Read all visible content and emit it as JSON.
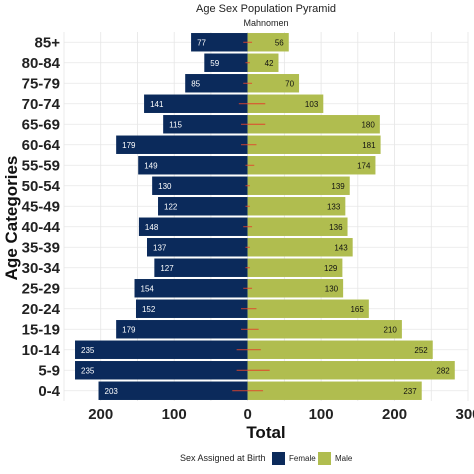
{
  "chart_data": {
    "type": "bar",
    "orientation": "horizontal",
    "title": "Age Sex Population Pyramid",
    "subtitle": "Mahnomen",
    "xlabel": "Total",
    "ylabel": "Age Categories",
    "xlim": [
      -250,
      300
    ],
    "xticks": [
      -200,
      -100,
      0,
      100,
      200,
      300
    ],
    "xtick_labels": [
      "200",
      "100",
      "0",
      "100",
      "200",
      "300"
    ],
    "grid": true,
    "legend": {
      "title": "Sex Assigned at Birth",
      "position": "bottom"
    },
    "categories": [
      "0-4",
      "5-9",
      "10-14",
      "15-19",
      "20-24",
      "25-29",
      "30-34",
      "35-39",
      "40-44",
      "45-49",
      "50-54",
      "55-59",
      "60-64",
      "65-69",
      "70-74",
      "75-79",
      "80-84",
      "85+"
    ],
    "series": [
      {
        "name": "Female",
        "color": "#0b2a5b",
        "values": [
          203,
          235,
          235,
          179,
          152,
          154,
          127,
          137,
          148,
          122,
          130,
          149,
          179,
          115,
          141,
          85,
          59,
          77
        ]
      },
      {
        "name": "Male",
        "color": "#b0bd4f",
        "values": [
          237,
          282,
          252,
          210,
          165,
          130,
          129,
          143,
          136,
          133,
          139,
          174,
          181,
          180,
          103,
          70,
          42,
          56
        ]
      }
    ],
    "error_bar_color": "#e0452b",
    "error_bars": [
      [
        -7,
        7
      ],
      [
        -5,
        10
      ],
      [
        -5,
        6
      ],
      [
        -3,
        5
      ],
      [
        -3,
        4
      ],
      [
        -2,
        2
      ],
      [
        -1,
        1
      ],
      [
        -1,
        1
      ],
      [
        -2,
        2
      ],
      [
        -1,
        1
      ],
      [
        -1,
        1
      ],
      [
        -1,
        3
      ],
      [
        -3,
        4
      ],
      [
        -3,
        8
      ],
      [
        -4,
        8
      ],
      [
        -2,
        2
      ],
      [
        -1,
        1
      ],
      [
        -2,
        2
      ]
    ]
  }
}
